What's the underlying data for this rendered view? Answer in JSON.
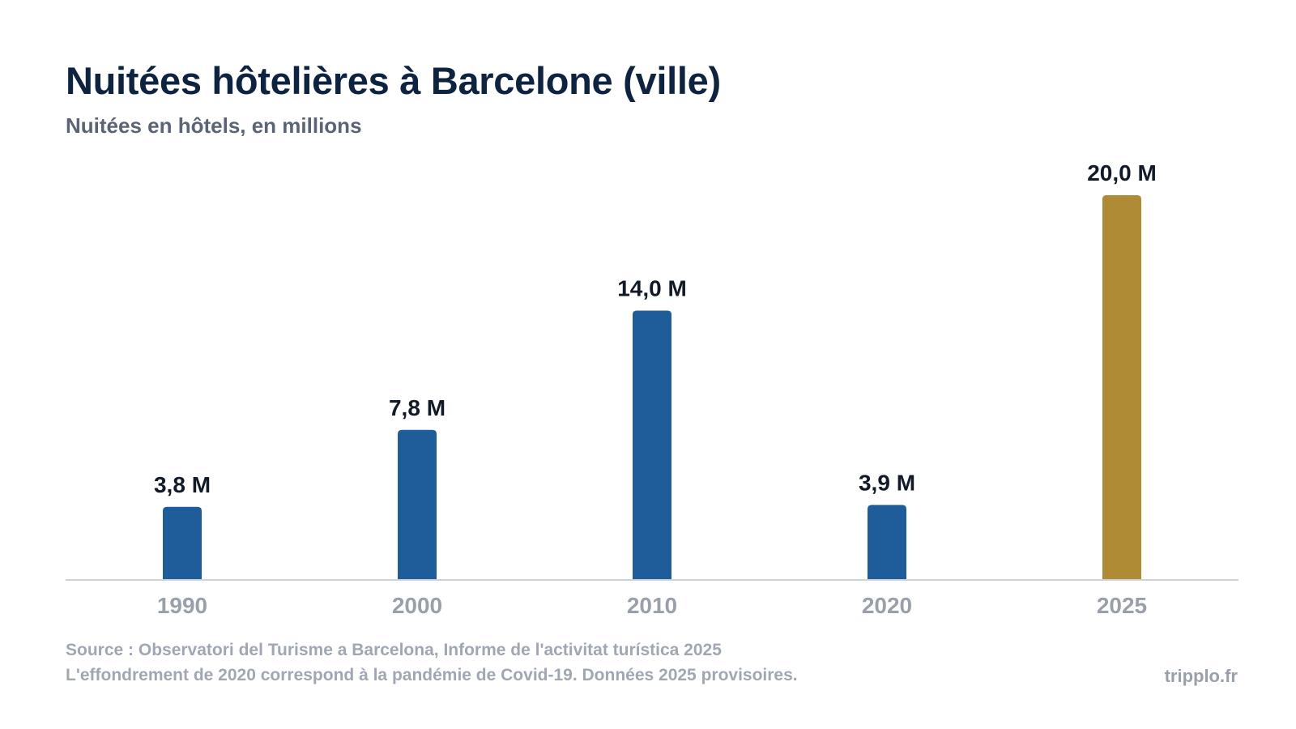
{
  "header": {
    "title": "Nuitées hôtelières à Barcelone (ville)",
    "subtitle": "Nuitées en hôtels, en millions"
  },
  "chart_data": {
    "type": "bar",
    "title": "Nuitées hôtelières à Barcelone (ville)",
    "subtitle": "Nuitées en hôtels, en millions",
    "xlabel": "",
    "ylabel": "",
    "categories": [
      "1990",
      "2000",
      "2010",
      "2020",
      "2025"
    ],
    "values": [
      3.8,
      7.8,
      14.0,
      3.9,
      20.0
    ],
    "data_labels": [
      "3,8 M",
      "7,8 M",
      "14,0 M",
      "3,9 M",
      "20,0 M"
    ],
    "ylim": [
      0,
      20
    ],
    "grid": false,
    "legend": "none",
    "colors": {
      "default": "#1f5c9a",
      "highlight": "#b08b35",
      "axis": "#cfd3d9",
      "tick_label": "#9aa0aa",
      "value_label": "#121a28"
    },
    "highlight_categories": [
      "2025"
    ]
  },
  "footer": {
    "source": "Source : Observatori del Turisme a Barcelona, Informe de l'activitat turística 2025",
    "note": "L'effondrement de 2020 correspond à la pandémie de Covid-19. Données 2025 provisoires.",
    "brand": "tripplo.fr"
  }
}
